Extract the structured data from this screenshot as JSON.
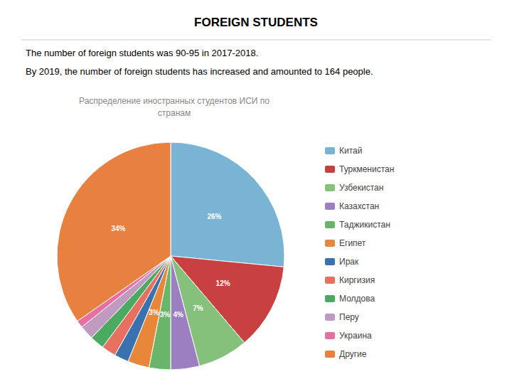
{
  "chart_data": {
    "type": "pie",
    "title": "FOREIGN STUDENTS",
    "subtitle": "Распределение иностранных студентов ИСИ по\nстранам",
    "annotations": [
      "The number of foreign students was 90-95 in 2017-2018.",
      "By 2019, the number of foreign students has increased and amounted to 164 people."
    ],
    "categories": [
      "Китай",
      "Туркменистан",
      "Узбекистан",
      "Казахстан",
      "Таджикистан",
      "Египет",
      "Ирак",
      "Киргизия",
      "Молдова",
      "Перу",
      "Украина",
      "Другие"
    ],
    "values": [
      26,
      12,
      7,
      4,
      3,
      3,
      2,
      2,
      2,
      2,
      1,
      34
    ],
    "value_labels": [
      "26%",
      "12%",
      "7%",
      "4%",
      "3%",
      "3%",
      null,
      null,
      null,
      null,
      null,
      "34%"
    ],
    "colors": [
      "#7ab4d4",
      "#c94040",
      "#85c17a",
      "#9b7fc0",
      "#6ab56a",
      "#e8873a",
      "#3a72b0",
      "#e87060",
      "#4aaa60",
      "#c09ac0",
      "#e870a0",
      "#e88040"
    ],
    "data_labels": true,
    "legend": "right"
  }
}
